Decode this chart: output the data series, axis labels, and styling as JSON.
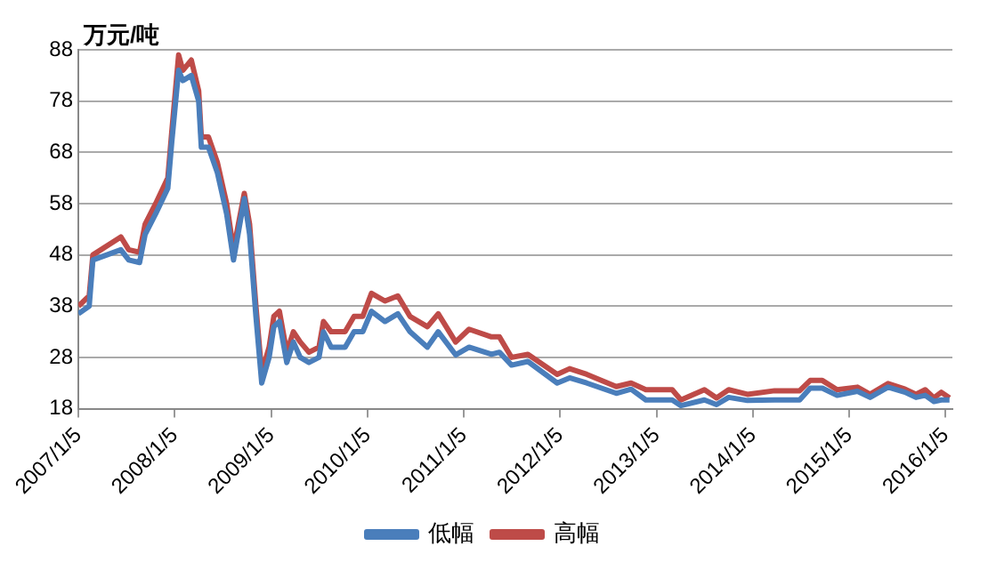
{
  "chart_data": {
    "type": "line",
    "ylabel": "万元/吨",
    "x": [
      "2007-01-05",
      "2007-02-15",
      "2007-03-01",
      "2007-06-15",
      "2007-07-15",
      "2007-08-25",
      "2007-09-15",
      "2007-10-25",
      "2007-12-10",
      "2007-12-25",
      "2008-01-20",
      "2008-02-05",
      "2008-03-08",
      "2008-04-05",
      "2008-04-15",
      "2008-05-12",
      "2008-06-15",
      "2008-07-20",
      "2008-08-15",
      "2008-09-25",
      "2008-10-15",
      "2008-11-08",
      "2008-11-30",
      "2008-12-28",
      "2009-01-15",
      "2009-02-05",
      "2009-03-05",
      "2009-03-30",
      "2009-04-25",
      "2009-05-28",
      "2009-07-05",
      "2009-07-22",
      "2009-08-20",
      "2009-10-12",
      "2009-11-15",
      "2009-12-18",
      "2010-01-20",
      "2010-03-12",
      "2010-04-30",
      "2010-06-15",
      "2010-08-20",
      "2010-09-30",
      "2010-12-05",
      "2011-01-25",
      "2011-04-20",
      "2011-05-20",
      "2011-07-05",
      "2011-09-05",
      "2011-12-25",
      "2012-02-10",
      "2012-04-15",
      "2012-08-05",
      "2012-09-30",
      "2012-11-25",
      "2013-03-05",
      "2013-04-07",
      "2013-07-05",
      "2013-08-20",
      "2013-10-05",
      "2013-12-15",
      "2014-03-28",
      "2014-07-01",
      "2014-08-10",
      "2014-09-25",
      "2014-11-20",
      "2015-02-05",
      "2015-03-25",
      "2015-06-01",
      "2015-08-05",
      "2015-09-15",
      "2015-10-20",
      "2015-11-22",
      "2015-12-20",
      "2016-01-20"
    ],
    "series": [
      {
        "name": "低幅",
        "color": "#4a7ebb",
        "values": [
          36.5,
          38,
          47,
          49,
          47,
          46.5,
          52,
          56,
          61,
          70,
          84,
          82,
          83,
          78,
          69,
          69,
          64,
          56,
          47,
          59,
          52,
          36,
          23,
          28,
          34,
          35,
          27,
          31,
          28,
          27,
          28,
          33,
          30,
          30,
          33,
          33,
          37,
          35,
          36.5,
          33,
          30,
          33,
          28.5,
          30,
          28.6,
          29,
          26.5,
          27.2,
          23,
          24,
          23,
          21,
          21.8,
          19.7,
          19.7,
          18.6,
          19.7,
          18.8,
          20.2,
          19.6,
          19.7,
          19.7,
          22,
          22,
          20.6,
          21.4,
          20.2,
          22.2,
          21.2,
          20.2,
          20.6,
          19.4,
          19.7,
          19.7
        ]
      },
      {
        "name": "高幅",
        "color": "#be4b48",
        "values": [
          38,
          40,
          48,
          51.5,
          49,
          48.5,
          54,
          58,
          63,
          72,
          87,
          84,
          86,
          80,
          71,
          71,
          66,
          58,
          49,
          60,
          54,
          38,
          25,
          30,
          36,
          37,
          29,
          33,
          31,
          29,
          30,
          35,
          33,
          33,
          36,
          36,
          40.5,
          39,
          40,
          36,
          34,
          36.5,
          31,
          33.5,
          32,
          32,
          28,
          28.6,
          24.7,
          25.8,
          24.7,
          22.3,
          23,
          21.7,
          21.7,
          19.7,
          21.7,
          20.1,
          21.7,
          20.8,
          21.5,
          21.5,
          23.5,
          23.5,
          21.7,
          22.2,
          20.8,
          22.9,
          21.8,
          20.8,
          21.7,
          20.1,
          21.2,
          20.1
        ]
      }
    ],
    "xlim": [
      "2007-01-05",
      "2016-01-31"
    ],
    "xticks": [
      {
        "value": "2007-01-05",
        "label": "2007/1/5"
      },
      {
        "value": "2008-01-05",
        "label": "2008/1/5"
      },
      {
        "value": "2009-01-05",
        "label": "2009/1/5"
      },
      {
        "value": "2010-01-05",
        "label": "2010/1/5"
      },
      {
        "value": "2011-01-05",
        "label": "2011/1/5"
      },
      {
        "value": "2012-01-05",
        "label": "2012/1/5"
      },
      {
        "value": "2013-01-05",
        "label": "2013/1/5"
      },
      {
        "value": "2014-01-05",
        "label": "2014/1/5"
      },
      {
        "value": "2015-01-05",
        "label": "2015/1/5"
      },
      {
        "value": "2016-01-05",
        "label": "2016/1/5"
      }
    ],
    "ylim": [
      18,
      88
    ],
    "yticks": [
      18,
      28,
      38,
      48,
      58,
      68,
      78,
      88
    ],
    "grid": "y",
    "legend": "bottom",
    "marker": "none",
    "line_style": "solid"
  }
}
